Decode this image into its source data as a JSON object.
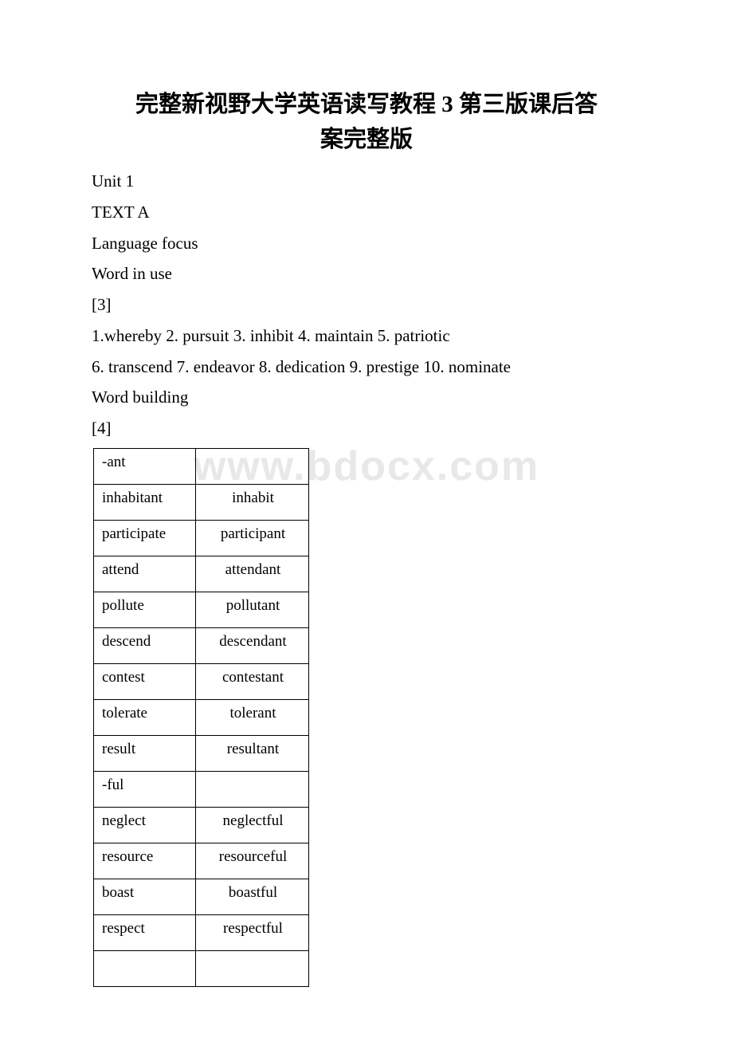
{
  "title_line1": "完整新视野大学英语读写教程 3 第三版课后答",
  "title_line2": "案完整版",
  "watermark": "www.bdocx.com",
  "lines": {
    "l1": "Unit 1",
    "l2": "TEXT A",
    "l3": "Language focus",
    "l4": "Word in use",
    "l5": "[3]",
    "l6": "1.whereby 2. pursuit  3. inhibit  4. maintain  5. patriotic",
    "l7": "6. transcend  7. endeavor 8. dedication 9. prestige  10. nominate",
    "l8": "Word building",
    "l9": "[4]"
  },
  "table": {
    "rows": [
      {
        "c1": "-ant",
        "c2": ""
      },
      {
        "c1": "inhabitant",
        "c2": "inhabit"
      },
      {
        "c1": "participate",
        "c2": "participant"
      },
      {
        "c1": "attend",
        "c2": "attendant"
      },
      {
        "c1": "pollute",
        "c2": "pollutant"
      },
      {
        "c1": "descend",
        "c2": "descendant"
      },
      {
        "c1": "contest",
        "c2": "contestant"
      },
      {
        "c1": "tolerate",
        "c2": "tolerant"
      },
      {
        "c1": "result",
        "c2": "resultant"
      },
      {
        "c1": "-ful",
        "c2": ""
      },
      {
        "c1": "neglect",
        "c2": "neglectful"
      },
      {
        "c1": "resource",
        "c2": "resourceful"
      },
      {
        "c1": "boast",
        "c2": "boastful"
      },
      {
        "c1": "respect",
        "c2": "respectful"
      },
      {
        "c1": "",
        "c2": ""
      }
    ]
  },
  "styles": {
    "background_color": "#ffffff",
    "text_color": "#000000",
    "watermark_color": "#e8e8e8",
    "title_fontsize": 29,
    "body_fontsize": 21,
    "table_fontsize": 19
  }
}
